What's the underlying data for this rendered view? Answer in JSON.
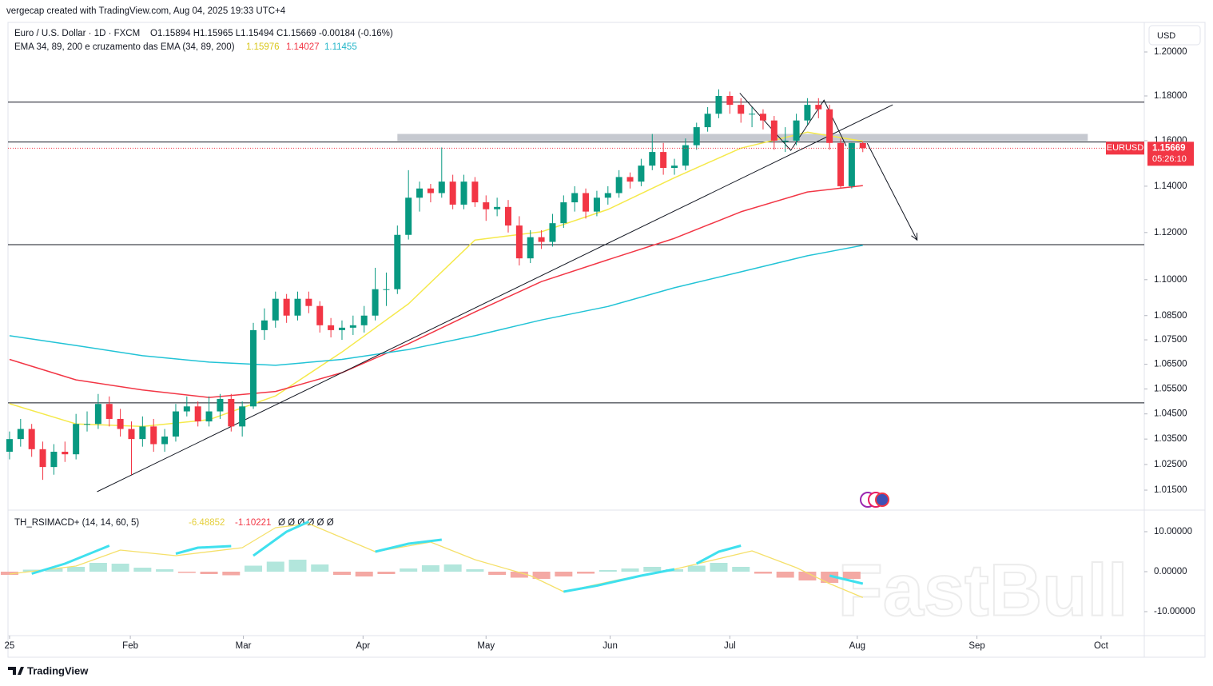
{
  "header": {
    "credit": "vergecap created with TradingView.com, Aug 04, 2025 19:33 UTC+4",
    "symbol": "Euro / U.S. Dollar · 1D · FXCM",
    "ohlc": "O1.15894  H1.15965  L1.15494  C1.15669  -0.00184 (-0.16%)",
    "currency": "USD",
    "symbol_label": "EURUSD",
    "countdown": "05:26:10",
    "brand": "TradingView",
    "watermark": "FastBull"
  },
  "chart_data": [
    {
      "type": "candlestick",
      "log_scale": true,
      "up_color": "#089981",
      "down_color": "#f23645",
      "legend": "EMA 34, 89, 200 e cruzamento das EMA (34, 89, 200)",
      "ylim": [
        1.0079,
        1.2129
      ],
      "yticks": [
        {
          "value": 1.2,
          "label": "1.20000"
        },
        {
          "value": 1.18,
          "label": "1.18000"
        },
        {
          "value": 1.16,
          "label": "1.16000"
        },
        {
          "value": 1.14,
          "label": "1.14000"
        },
        {
          "value": 1.12,
          "label": "1.12000"
        },
        {
          "value": 1.1,
          "label": "1.10000"
        },
        {
          "value": 1.085,
          "label": "1.08500"
        },
        {
          "value": 1.075,
          "label": "1.07500"
        },
        {
          "value": 1.065,
          "label": "1.06500"
        },
        {
          "value": 1.055,
          "label": "1.05500"
        },
        {
          "value": 1.045,
          "label": "1.04500"
        },
        {
          "value": 1.035,
          "label": "1.03500"
        },
        {
          "value": 1.025,
          "label": "1.02500"
        },
        {
          "value": 1.015,
          "label": "1.01500"
        }
      ],
      "xlim": [
        -0.14,
        102.4
      ],
      "xticks": [
        {
          "value": 0,
          "label": "25"
        },
        {
          "value": 10.9,
          "label": "Feb"
        },
        {
          "value": 21.1,
          "label": "Mar"
        },
        {
          "value": 31.9,
          "label": "Apr"
        },
        {
          "value": 43.0,
          "label": "May"
        },
        {
          "value": 54.2,
          "label": "Jun"
        },
        {
          "value": 65.0,
          "label": "Jul"
        },
        {
          "value": 76.5,
          "label": "Aug"
        },
        {
          "value": 87.3,
          "label": "Sep"
        },
        {
          "value": 98.5,
          "label": "Oct"
        }
      ],
      "candles": [
        [
          1.03,
          1.038,
          1.027,
          1.035
        ],
        [
          1.035,
          1.043,
          1.032,
          1.039
        ],
        [
          1.039,
          1.041,
          1.028,
          1.031
        ],
        [
          1.031,
          1.034,
          1.019,
          1.024
        ],
        [
          1.024,
          1.033,
          1.021,
          1.03
        ],
        [
          1.03,
          1.034,
          1.026,
          1.029
        ],
        [
          1.029,
          1.045,
          1.027,
          1.041
        ],
        [
          1.041,
          1.046,
          1.038,
          1.041
        ],
        [
          1.041,
          1.053,
          1.039,
          1.049
        ],
        [
          1.049,
          1.052,
          1.04,
          1.043
        ],
        [
          1.043,
          1.047,
          1.036,
          1.039
        ],
        [
          1.039,
          1.042,
          1.021,
          1.035
        ],
        [
          1.035,
          1.044,
          1.032,
          1.04
        ],
        [
          1.04,
          1.043,
          1.03,
          1.033
        ],
        [
          1.033,
          1.039,
          1.03,
          1.036
        ],
        [
          1.036,
          1.049,
          1.034,
          1.046
        ],
        [
          1.046,
          1.052,
          1.044,
          1.048
        ],
        [
          1.048,
          1.05,
          1.04,
          1.042
        ],
        [
          1.042,
          1.052,
          1.04,
          1.046
        ],
        [
          1.046,
          1.053,
          1.043,
          1.051
        ],
        [
          1.051,
          1.053,
          1.038,
          1.04
        ],
        [
          1.04,
          1.05,
          1.036,
          1.048
        ],
        [
          1.048,
          1.082,
          1.047,
          1.079
        ],
        [
          1.079,
          1.088,
          1.075,
          1.083
        ],
        [
          1.083,
          1.095,
          1.08,
          1.092
        ],
        [
          1.092,
          1.094,
          1.082,
          1.085
        ],
        [
          1.085,
          1.095,
          1.083,
          1.092
        ],
        [
          1.092,
          1.095,
          1.086,
          1.089
        ],
        [
          1.089,
          1.091,
          1.078,
          1.081
        ],
        [
          1.081,
          1.084,
          1.076,
          1.079
        ],
        [
          1.079,
          1.083,
          1.075,
          1.08
        ],
        [
          1.08,
          1.085,
          1.077,
          1.081
        ],
        [
          1.081,
          1.089,
          1.078,
          1.085
        ],
        [
          1.085,
          1.105,
          1.083,
          1.096
        ],
        [
          1.096,
          1.103,
          1.089,
          1.096
        ],
        [
          1.096,
          1.123,
          1.094,
          1.119
        ],
        [
          1.119,
          1.147,
          1.117,
          1.135
        ],
        [
          1.135,
          1.142,
          1.129,
          1.139
        ],
        [
          1.139,
          1.141,
          1.133,
          1.137
        ],
        [
          1.137,
          1.157,
          1.135,
          1.142
        ],
        [
          1.142,
          1.145,
          1.13,
          1.132
        ],
        [
          1.132,
          1.145,
          1.13,
          1.142
        ],
        [
          1.142,
          1.144,
          1.131,
          1.133
        ],
        [
          1.133,
          1.136,
          1.125,
          1.13
        ],
        [
          1.13,
          1.135,
          1.127,
          1.131
        ],
        [
          1.131,
          1.134,
          1.12,
          1.123
        ],
        [
          1.123,
          1.127,
          1.106,
          1.109
        ],
        [
          1.109,
          1.121,
          1.107,
          1.118
        ],
        [
          1.118,
          1.121,
          1.113,
          1.116
        ],
        [
          1.116,
          1.128,
          1.114,
          1.124
        ],
        [
          1.124,
          1.136,
          1.122,
          1.133
        ],
        [
          1.133,
          1.14,
          1.129,
          1.137
        ],
        [
          1.137,
          1.139,
          1.126,
          1.129
        ],
        [
          1.129,
          1.138,
          1.127,
          1.135
        ],
        [
          1.135,
          1.14,
          1.132,
          1.137
        ],
        [
          1.137,
          1.147,
          1.135,
          1.144
        ],
        [
          1.144,
          1.146,
          1.139,
          1.142
        ],
        [
          1.142,
          1.152,
          1.14,
          1.149
        ],
        [
          1.149,
          1.163,
          1.147,
          1.155
        ],
        [
          1.155,
          1.159,
          1.145,
          1.148
        ],
        [
          1.148,
          1.152,
          1.145,
          1.149
        ],
        [
          1.149,
          1.161,
          1.147,
          1.158
        ],
        [
          1.158,
          1.168,
          1.156,
          1.166
        ],
        [
          1.166,
          1.175,
          1.164,
          1.172
        ],
        [
          1.172,
          1.183,
          1.17,
          1.18
        ],
        [
          1.18,
          1.182,
          1.172,
          1.176
        ],
        [
          1.176,
          1.179,
          1.168,
          1.172
        ],
        [
          1.172,
          1.175,
          1.166,
          1.172
        ],
        [
          1.172,
          1.174,
          1.165,
          1.169
        ],
        [
          1.169,
          1.171,
          1.156,
          1.16
        ],
        [
          1.16,
          1.166,
          1.155,
          1.16
        ],
        [
          1.16,
          1.172,
          1.158,
          1.169
        ],
        [
          1.169,
          1.179,
          1.167,
          1.176
        ],
        [
          1.176,
          1.179,
          1.17,
          1.174
        ],
        [
          1.174,
          1.176,
          1.156,
          1.159
        ],
        [
          1.159,
          1.161,
          1.139,
          1.14
        ],
        [
          1.14,
          1.159,
          1.139,
          1.159
        ],
        [
          1.15894,
          1.15965,
          1.15494,
          1.15669
        ]
      ],
      "series": [
        {
          "color": "#f5e94a",
          "x": [
            0,
            6,
            12,
            18,
            24,
            30,
            36,
            42,
            48,
            54,
            60,
            66,
            72,
            77
          ],
          "values": [
            1.0491,
            1.041,
            1.04,
            1.0427,
            1.0522,
            1.07,
            1.0899,
            1.1168,
            1.1203,
            1.1299,
            1.1437,
            1.1567,
            1.1638,
            1.15976
          ]
        },
        {
          "color": "#f23645",
          "x": [
            0,
            6,
            12,
            18,
            24,
            30,
            36,
            42,
            48,
            54,
            60,
            66,
            72,
            77
          ],
          "values": [
            1.067,
            1.0587,
            1.0546,
            1.0516,
            1.054,
            1.0616,
            1.0734,
            1.0865,
            1.0992,
            1.1084,
            1.1175,
            1.1289,
            1.1375,
            1.14027
          ]
        },
        {
          "color": "#22c3d6",
          "x": [
            0,
            6,
            12,
            18,
            24,
            30,
            36,
            42,
            48,
            54,
            60,
            66,
            72,
            77
          ],
          "values": [
            1.0767,
            1.0727,
            1.0685,
            1.0659,
            1.0646,
            1.067,
            1.071,
            1.0767,
            1.0832,
            1.0888,
            1.0966,
            1.1033,
            1.1101,
            1.11455
          ]
        }
      ],
      "levels": [
        1.1772,
        1.1594,
        1.1148,
        1.0494
      ],
      "zone": {
        "x": [
          35.0,
          97.3
        ],
        "y": [
          1.1599,
          1.163
        ]
      },
      "trendlines": [
        [
          [
            7.9,
            1.0144
          ],
          [
            79.7,
            1.176
          ]
        ],
        [
          [
            65.9,
            1.1813
          ],
          [
            70.5,
            1.1557
          ],
          [
            73.5,
            1.1781
          ],
          [
            75.5,
            1.1576
          ]
        ]
      ],
      "arrow": [
        [
          77.4,
          1.1589
        ],
        [
          81.9,
          1.1168
        ]
      ]
    },
    {
      "type": "line",
      "title": "TH_RSIMACD+ (14, 14, 60, 5)",
      "signal_value": -1.10221,
      "flags": "Ø  Ø  Ø  Ø  Ø  Ø",
      "ylim": [
        -15,
        15
      ],
      "yticks": [
        {
          "value": 10,
          "label": "10.00000"
        },
        {
          "value": 0,
          "label": "0.00000"
        },
        {
          "value": -10,
          "label": "-10.00000"
        }
      ],
      "series": [
        {
          "color": "#f5e06a",
          "x": [
            0,
            6,
            10,
            15,
            21,
            24,
            27,
            33,
            38,
            42,
            47,
            50,
            55,
            60,
            67,
            71,
            74,
            77
          ],
          "values": [
            -0.6,
            1.4,
            5.4,
            4,
            6,
            11,
            12,
            5,
            7.4,
            3,
            -1,
            -5,
            -2,
            0.6,
            5.2,
            1,
            -3,
            -6.48852
          ]
        },
        {
          "color": "#3fe0ee",
          "x": [
            2,
            5,
            9,
            10,
            15,
            17,
            20,
            21,
            22,
            25,
            27,
            28,
            33,
            36,
            39,
            40,
            50,
            53,
            57,
            60,
            61,
            62,
            64,
            66,
            67,
            74,
            77
          ],
          "values": [
            -0.5,
            2,
            6.5,
            null,
            4.5,
            6,
            6.4,
            null,
            4,
            10,
            12.5,
            null,
            5,
            7,
            8,
            null,
            -5,
            -3.5,
            -1,
            0.6,
            null,
            2,
            5,
            6.5,
            null,
            -1,
            -3
          ]
        }
      ],
      "histogram": {
        "pos_color": "#b2e6dc",
        "neg_color": "#f4a9a4",
        "x": [
          0,
          2,
          4,
          6,
          8,
          10,
          12,
          14,
          16,
          18,
          20,
          22,
          24,
          26,
          28,
          30,
          32,
          34,
          36,
          38,
          40,
          42,
          44,
          46,
          48,
          50,
          52,
          54,
          56,
          58,
          60,
          62,
          64,
          66,
          68,
          70,
          72,
          74,
          76
        ],
        "values": [
          -0.8,
          0.5,
          0.8,
          1.2,
          2.2,
          2.0,
          1.0,
          0.6,
          -0.3,
          -0.6,
          -0.9,
          1.5,
          2.5,
          3.0,
          1.8,
          -0.8,
          -1.2,
          -0.6,
          0.8,
          1.6,
          1.8,
          0.6,
          -0.8,
          -1.5,
          -1.8,
          -1.2,
          -0.5,
          0.4,
          0.8,
          1.2,
          0.6,
          1.5,
          2.2,
          1.2,
          -0.5,
          -1.5,
          -2.2,
          -2.8,
          -1.8
        ]
      }
    }
  ]
}
